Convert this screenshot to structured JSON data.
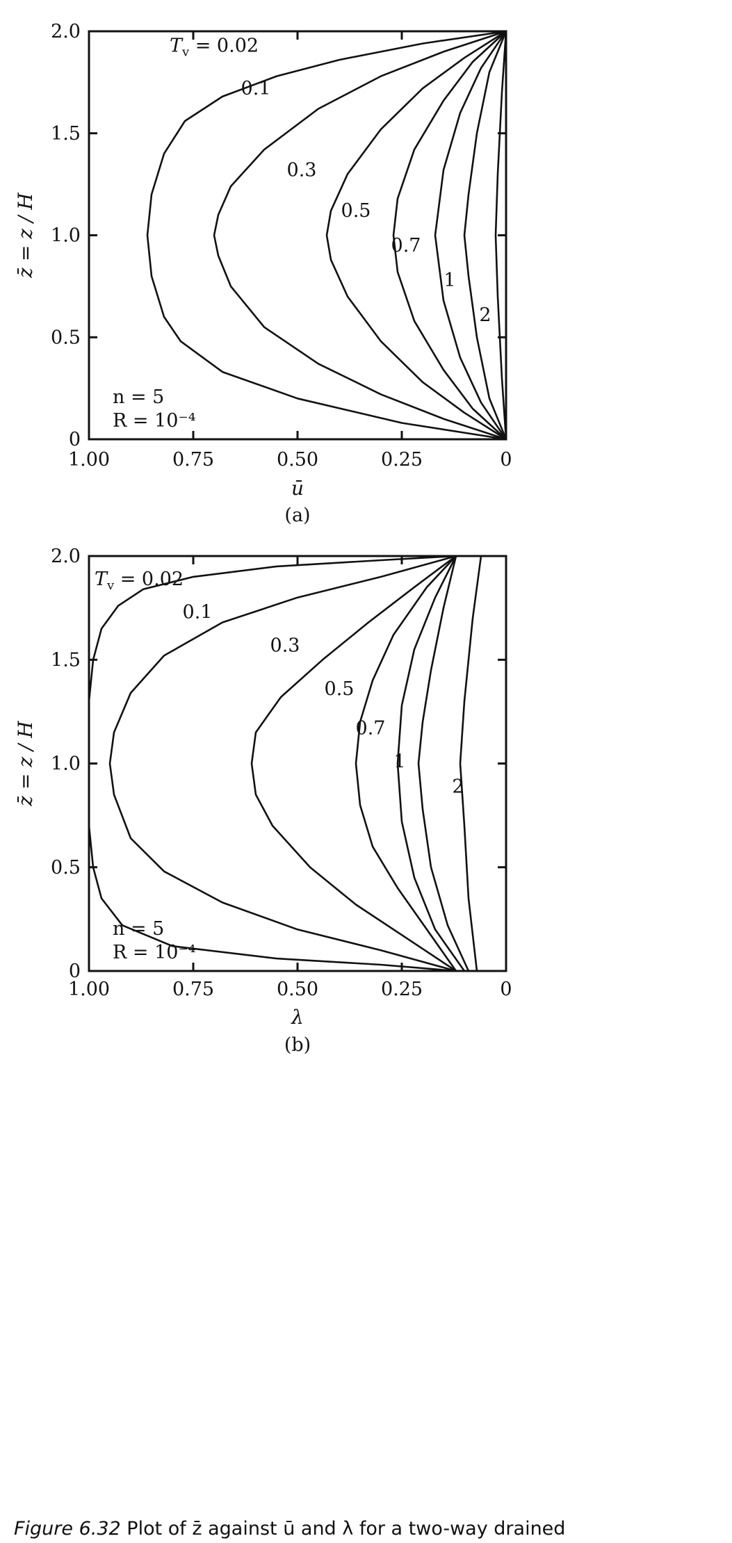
{
  "chart_data": [
    {
      "type": "line",
      "panel_label": "(a)",
      "xlabel": "ū",
      "ylabel": "z̄ = z / H",
      "x_reversed": true,
      "xlim": [
        0,
        1.0
      ],
      "ylim": [
        0,
        2.0
      ],
      "x_ticks": [
        {
          "value": 1.0,
          "label": "1.00"
        },
        {
          "value": 0.75,
          "label": "0.75"
        },
        {
          "value": 0.5,
          "label": "0.50"
        },
        {
          "value": 0.25,
          "label": "0.25"
        },
        {
          "value": 0,
          "label": "0"
        }
      ],
      "y_ticks": [
        {
          "value": 0,
          "label": "0"
        },
        {
          "value": 0.5,
          "label": "0.5"
        },
        {
          "value": 1.0,
          "label": "1.0"
        },
        {
          "value": 1.5,
          "label": "1.5"
        },
        {
          "value": 2.0,
          "label": "2.0"
        }
      ],
      "annotation_lines": [
        "n = 5",
        "R = 10⁻⁴"
      ],
      "series": [
        {
          "name": "Tv = 0.02",
          "label": "T_v = 0.02",
          "label_at": [
            0.7,
            1.9
          ],
          "points": [
            [
              0,
              2.0
            ],
            [
              0.2,
              1.94
            ],
            [
              0.4,
              1.86
            ],
            [
              0.55,
              1.78
            ],
            [
              0.68,
              1.68
            ],
            [
              0.77,
              1.56
            ],
            [
              0.82,
              1.4
            ],
            [
              0.85,
              1.2
            ],
            [
              0.86,
              1.0
            ],
            [
              0.85,
              0.8
            ],
            [
              0.82,
              0.6
            ],
            [
              0.78,
              0.48
            ],
            [
              0.68,
              0.33
            ],
            [
              0.5,
              0.2
            ],
            [
              0.25,
              0.08
            ],
            [
              0,
              0
            ]
          ]
        },
        {
          "name": "0.1",
          "label": "0.1",
          "label_at": [
            0.6,
            1.69
          ],
          "points": [
            [
              0,
              2.0
            ],
            [
              0.15,
              1.9
            ],
            [
              0.3,
              1.78
            ],
            [
              0.45,
              1.62
            ],
            [
              0.58,
              1.42
            ],
            [
              0.66,
              1.24
            ],
            [
              0.69,
              1.1
            ],
            [
              0.7,
              1.0
            ],
            [
              0.69,
              0.9
            ],
            [
              0.66,
              0.75
            ],
            [
              0.58,
              0.55
            ],
            [
              0.45,
              0.37
            ],
            [
              0.3,
              0.22
            ],
            [
              0.15,
              0.1
            ],
            [
              0,
              0
            ]
          ]
        },
        {
          "name": "0.3",
          "label": "0.3",
          "label_at": [
            0.49,
            1.29
          ],
          "points": [
            [
              0,
              2.0
            ],
            [
              0.1,
              1.87
            ],
            [
              0.2,
              1.72
            ],
            [
              0.3,
              1.52
            ],
            [
              0.38,
              1.3
            ],
            [
              0.42,
              1.12
            ],
            [
              0.43,
              1.0
            ],
            [
              0.42,
              0.88
            ],
            [
              0.38,
              0.7
            ],
            [
              0.3,
              0.48
            ],
            [
              0.2,
              0.28
            ],
            [
              0.1,
              0.13
            ],
            [
              0,
              0
            ]
          ]
        },
        {
          "name": "0.5",
          "label": "0.5",
          "label_at": [
            0.36,
            1.09
          ],
          "points": [
            [
              0,
              2.0
            ],
            [
              0.08,
              1.85
            ],
            [
              0.15,
              1.66
            ],
            [
              0.22,
              1.42
            ],
            [
              0.26,
              1.18
            ],
            [
              0.27,
              1.0
            ],
            [
              0.26,
              0.82
            ],
            [
              0.22,
              0.58
            ],
            [
              0.15,
              0.34
            ],
            [
              0.08,
              0.15
            ],
            [
              0,
              0
            ]
          ]
        },
        {
          "name": "0.7",
          "label": "0.7",
          "label_at": [
            0.24,
            0.92
          ],
          "points": [
            [
              0,
              2.0
            ],
            [
              0.06,
              1.82
            ],
            [
              0.11,
              1.6
            ],
            [
              0.15,
              1.32
            ],
            [
              0.17,
              1.0
            ],
            [
              0.15,
              0.68
            ],
            [
              0.11,
              0.4
            ],
            [
              0.06,
              0.18
            ],
            [
              0,
              0
            ]
          ]
        },
        {
          "name": "1",
          "label": "1",
          "label_at": [
            0.135,
            0.75
          ],
          "points": [
            [
              0,
              2.0
            ],
            [
              0.04,
              1.8
            ],
            [
              0.07,
              1.5
            ],
            [
              0.09,
              1.2
            ],
            [
              0.1,
              1.0
            ],
            [
              0.09,
              0.8
            ],
            [
              0.07,
              0.5
            ],
            [
              0.04,
              0.2
            ],
            [
              0,
              0
            ]
          ]
        },
        {
          "name": "2",
          "label": "2",
          "label_at": [
            0.05,
            0.58
          ],
          "points": [
            [
              0,
              2.0
            ],
            [
              0.01,
              1.7
            ],
            [
              0.02,
              1.3
            ],
            [
              0.025,
              1.0
            ],
            [
              0.02,
              0.7
            ],
            [
              0.01,
              0.3
            ],
            [
              0,
              0
            ]
          ]
        }
      ]
    },
    {
      "type": "line",
      "panel_label": "(b)",
      "xlabel": "λ",
      "ylabel": "z̄ = z / H",
      "x_reversed": true,
      "xlim": [
        0,
        1.0
      ],
      "ylim": [
        0,
        2.0
      ],
      "x_ticks": [
        {
          "value": 1.0,
          "label": "1.00"
        },
        {
          "value": 0.75,
          "label": "0.75"
        },
        {
          "value": 0.5,
          "label": "0.50"
        },
        {
          "value": 0.25,
          "label": "0.25"
        },
        {
          "value": 0,
          "label": "0"
        }
      ],
      "y_ticks": [
        {
          "value": 0,
          "label": "0"
        },
        {
          "value": 0.5,
          "label": "0.5"
        },
        {
          "value": 1.0,
          "label": "1.0"
        },
        {
          "value": 1.5,
          "label": "1.5"
        },
        {
          "value": 2.0,
          "label": "2.0"
        }
      ],
      "annotation_lines": [
        "n = 5",
        "R = 10⁻⁴"
      ],
      "series": [
        {
          "name": "Tv = 0.02",
          "label": "T_v = 0.02",
          "label_at": [
            0.88,
            1.86
          ],
          "points": [
            [
              0.12,
              2.0
            ],
            [
              0.3,
              1.98
            ],
            [
              0.55,
              1.95
            ],
            [
              0.75,
              1.9
            ],
            [
              0.87,
              1.84
            ],
            [
              0.93,
              1.76
            ],
            [
              0.97,
              1.65
            ],
            [
              0.99,
              1.5
            ],
            [
              1.0,
              1.3
            ],
            [
              1.0,
              1.0
            ],
            [
              1.0,
              0.7
            ],
            [
              0.99,
              0.5
            ],
            [
              0.97,
              0.35
            ],
            [
              0.92,
              0.22
            ],
            [
              0.8,
              0.12
            ],
            [
              0.55,
              0.06
            ],
            [
              0.3,
              0.03
            ],
            [
              0.12,
              0
            ]
          ]
        },
        {
          "name": "0.1",
          "label": "0.1",
          "label_at": [
            0.74,
            1.7
          ],
          "points": [
            [
              0.12,
              2.0
            ],
            [
              0.3,
              1.9
            ],
            [
              0.5,
              1.8
            ],
            [
              0.68,
              1.68
            ],
            [
              0.82,
              1.52
            ],
            [
              0.9,
              1.34
            ],
            [
              0.94,
              1.15
            ],
            [
              0.95,
              1.0
            ],
            [
              0.94,
              0.85
            ],
            [
              0.9,
              0.64
            ],
            [
              0.82,
              0.48
            ],
            [
              0.68,
              0.33
            ],
            [
              0.5,
              0.2
            ],
            [
              0.3,
              0.1
            ],
            [
              0.12,
              0
            ]
          ]
        },
        {
          "name": "0.3",
          "label": "0.3",
          "label_at": [
            0.53,
            1.54
          ],
          "points": [
            [
              0.12,
              2.0
            ],
            [
              0.22,
              1.85
            ],
            [
              0.33,
              1.68
            ],
            [
              0.44,
              1.5
            ],
            [
              0.54,
              1.32
            ],
            [
              0.6,
              1.15
            ],
            [
              0.61,
              1.0
            ],
            [
              0.6,
              0.85
            ],
            [
              0.56,
              0.7
            ],
            [
              0.47,
              0.5
            ],
            [
              0.36,
              0.32
            ],
            [
              0.24,
              0.16
            ],
            [
              0.12,
              0
            ]
          ]
        },
        {
          "name": "0.5",
          "label": "0.5",
          "label_at": [
            0.4,
            1.33
          ],
          "points": [
            [
              0.12,
              2.0
            ],
            [
              0.19,
              1.85
            ],
            [
              0.27,
              1.62
            ],
            [
              0.32,
              1.4
            ],
            [
              0.35,
              1.2
            ],
            [
              0.36,
              1.0
            ],
            [
              0.35,
              0.8
            ],
            [
              0.32,
              0.6
            ],
            [
              0.26,
              0.4
            ],
            [
              0.19,
              0.2
            ],
            [
              0.12,
              0
            ]
          ]
        },
        {
          "name": "0.7",
          "label": "0.7",
          "label_at": [
            0.325,
            1.14
          ],
          "points": [
            [
              0.12,
              2.0
            ],
            [
              0.17,
              1.8
            ],
            [
              0.22,
              1.55
            ],
            [
              0.25,
              1.28
            ],
            [
              0.26,
              1.0
            ],
            [
              0.25,
              0.72
            ],
            [
              0.22,
              0.45
            ],
            [
              0.17,
              0.2
            ],
            [
              0.1,
              0
            ]
          ]
        },
        {
          "name": "1",
          "label": "1",
          "label_at": [
            0.255,
            0.98
          ],
          "points": [
            [
              0.12,
              2.0
            ],
            [
              0.15,
              1.75
            ],
            [
              0.18,
              1.45
            ],
            [
              0.2,
              1.2
            ],
            [
              0.21,
              1.0
            ],
            [
              0.2,
              0.78
            ],
            [
              0.18,
              0.5
            ],
            [
              0.14,
              0.22
            ],
            [
              0.09,
              0
            ]
          ]
        },
        {
          "name": "2",
          "label": "2",
          "label_at": [
            0.115,
            0.86
          ],
          "points": [
            [
              0.06,
              2.0
            ],
            [
              0.08,
              1.7
            ],
            [
              0.1,
              1.3
            ],
            [
              0.11,
              1.0
            ],
            [
              0.1,
              0.7
            ],
            [
              0.09,
              0.35
            ],
            [
              0.07,
              0
            ]
          ]
        }
      ]
    }
  ],
  "caption": {
    "figure_number": "Figure 6.32",
    "text": "Plot of z̄ against ū and λ for a two-way drained"
  }
}
